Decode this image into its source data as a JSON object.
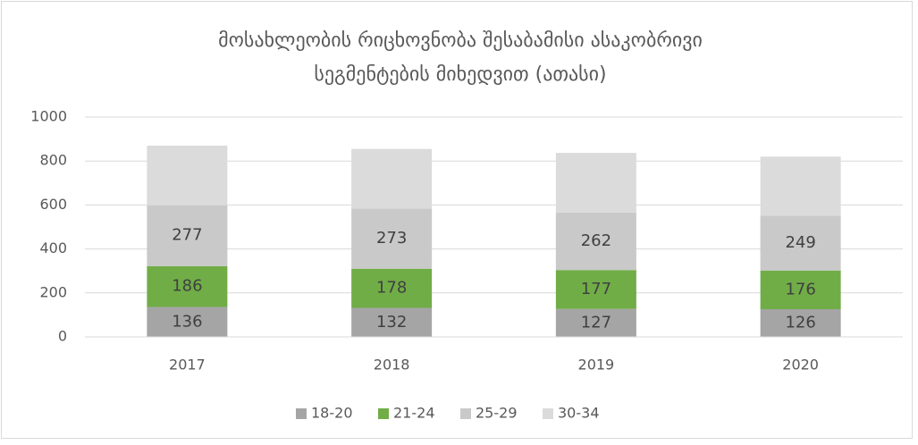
{
  "chart_data": {
    "type": "stacked_bar",
    "title": [
      "მოსახლეობის რიცხოვნობა შესაბამისი ასაკობრივი",
      "სეგმენტების მიხედვით (ათასი)"
    ],
    "categories": [
      "2017",
      "2018",
      "2019",
      "2020"
    ],
    "series": [
      {
        "name": "18-20",
        "color": "#a5a5a5",
        "values": [
          136,
          132,
          127,
          126
        ],
        "show_labels": true
      },
      {
        "name": "21-24",
        "color": "#70ad47",
        "values": [
          186,
          178,
          177,
          176
        ],
        "show_labels": true
      },
      {
        "name": "25-29",
        "color": "#c9c9c9",
        "values": [
          277,
          273,
          262,
          249
        ],
        "show_labels": true
      },
      {
        "name": "30-34",
        "color": "#dbdbdb",
        "values": [
          271,
          272,
          271,
          269
        ],
        "show_labels": false
      }
    ],
    "ylim": [
      0,
      1000
    ],
    "yticks": [
      0,
      200,
      400,
      600,
      800,
      1000
    ],
    "grid": true,
    "legend": "bottom"
  }
}
